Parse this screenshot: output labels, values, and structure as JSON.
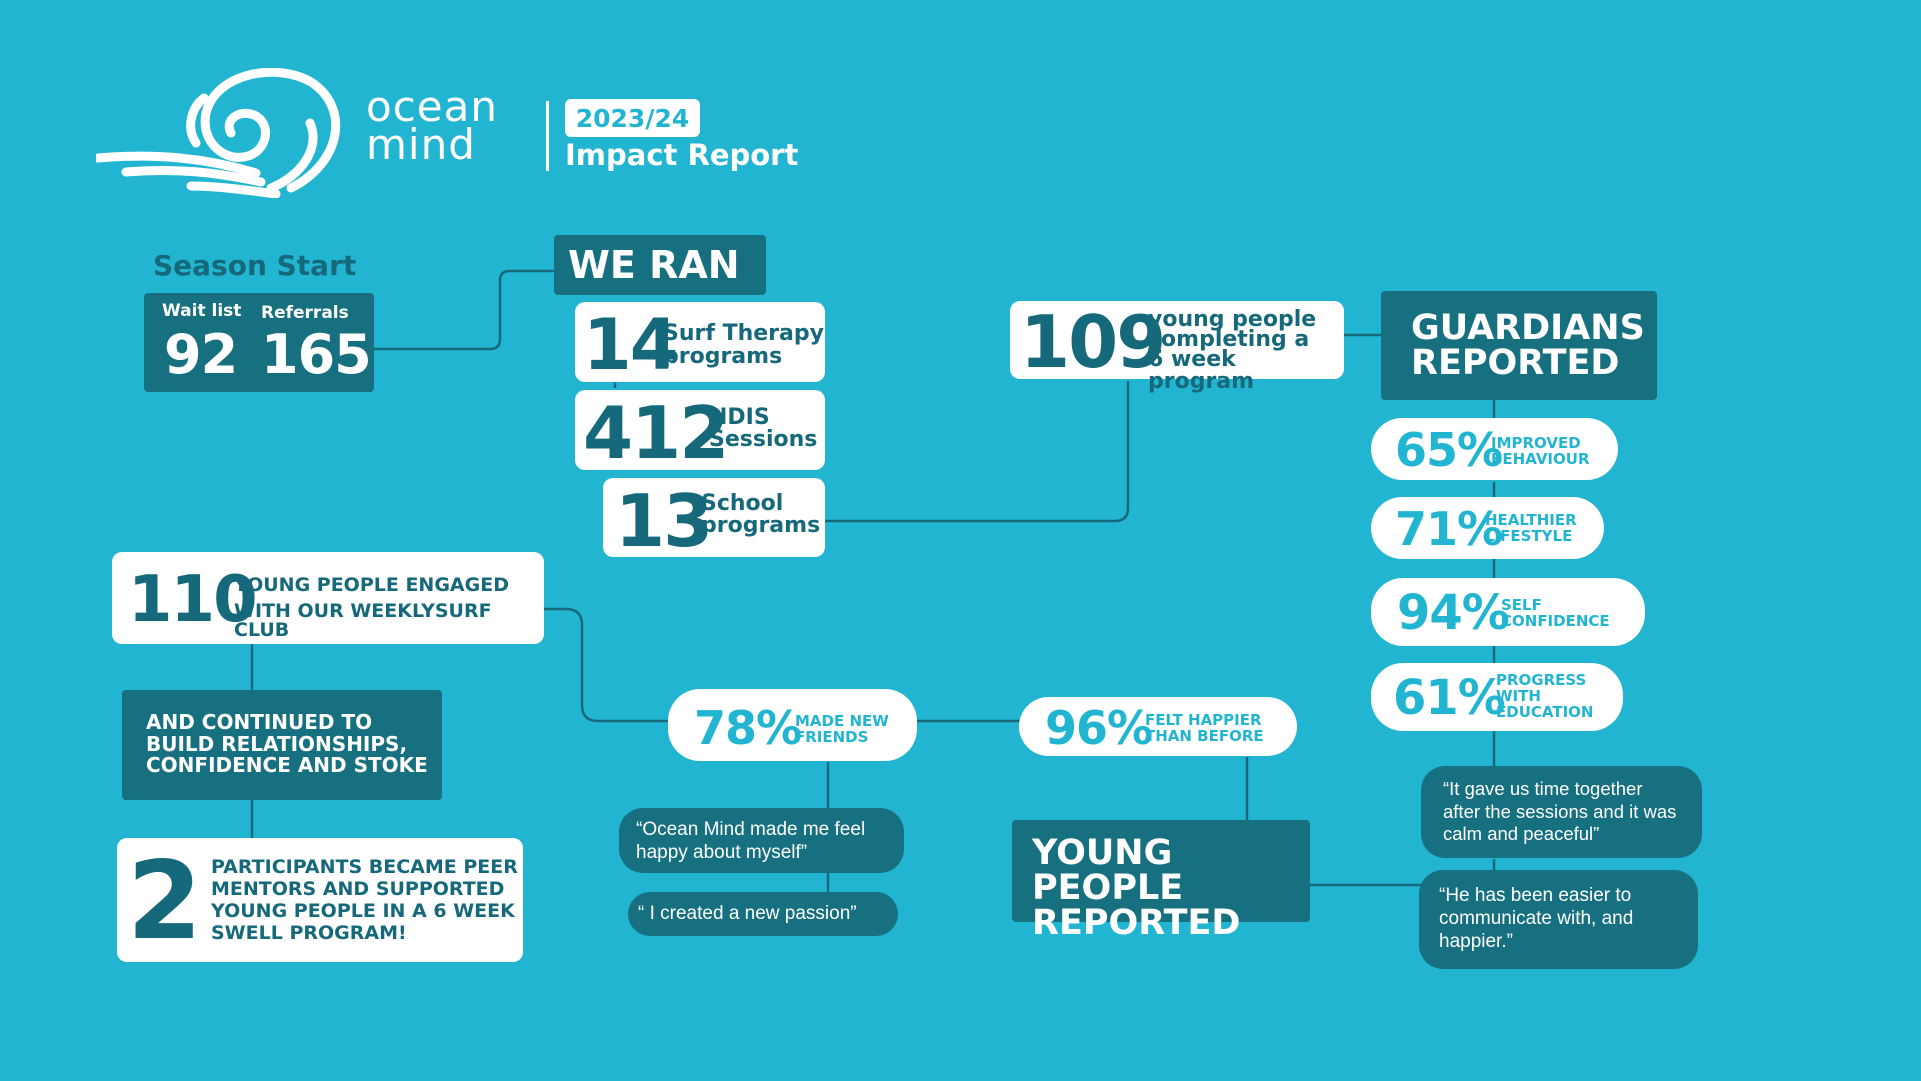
{
  "brand": {
    "logo_line1": "ocean",
    "logo_line2": "mind",
    "year": "2023/24",
    "report_title": "Impact Report"
  },
  "season_start": {
    "heading": "Season Start",
    "waitlist_label": "Wait list",
    "waitlist_value": "92",
    "referrals_label": "Referrals",
    "referrals_value": "165"
  },
  "we_ran": {
    "heading": "WE RAN",
    "items": [
      {
        "value": "14",
        "line1": "Surf Therapy",
        "line2": "programs"
      },
      {
        "value": "412",
        "line1": "NDIS",
        "line2": "Sessions"
      },
      {
        "value": "13",
        "line1": "School",
        "line2": "programs"
      }
    ]
  },
  "completion": {
    "value": "109",
    "line1": "young people",
    "line2": "completing a",
    "line3": "6 week program"
  },
  "guardians": {
    "heading_line1": "GUARDIANS",
    "heading_line2": "REPORTED",
    "stats": [
      {
        "value": "65%",
        "line1": "IMPROVED",
        "line2": "BEHAVIOUR",
        "line3": ""
      },
      {
        "value": "71%",
        "line1": "HEALTHIER",
        "line2": "LIFESTYLE",
        "line3": ""
      },
      {
        "value": "94%",
        "line1": "SELF",
        "line2": "CONFIDENCE",
        "line3": ""
      },
      {
        "value": "61%",
        "line1": "PROGRESS",
        "line2": "WITH",
        "line3": "EDUCATION"
      }
    ],
    "quotes": [
      "“It gave us time together after the sessions and it was calm and peaceful”",
      "“He has been easier to communicate with, and happier.”"
    ]
  },
  "surf_club": {
    "value": "110",
    "line1": "YOUNG PEOPLE ENGAGED",
    "line2": "WITH OUR WEEKLYSURF CLUB"
  },
  "continued": {
    "line1": "AND CONTINUED TO",
    "line2": "BUILD RELATIONSHIPS,",
    "line3": "CONFIDENCE AND STOKE"
  },
  "peer_mentors": {
    "value": "2",
    "line1": "PARTICIPANTS BECAME PEER",
    "line2": "MENTORS AND SUPPORTED",
    "line3": "YOUNG PEOPLE IN A 6 WEEK",
    "line4": "SWELL PROGRAM!"
  },
  "young_people": {
    "heading_line1": "YOUNG PEOPLE",
    "heading_line2": "REPORTED",
    "stats": [
      {
        "value": "78%",
        "line1": "MADE NEW",
        "line2": "FRIENDS"
      },
      {
        "value": "96%",
        "line1": "FELT HAPPIER",
        "line2": "THAN BEFORE"
      }
    ],
    "quotes": [
      "“Ocean Mind made me feel happy about myself”",
      "“ I created a new passion”"
    ]
  },
  "colors": {
    "background": "#22b5d1",
    "dark_teal": "#17707f",
    "white": "#ffffff"
  }
}
